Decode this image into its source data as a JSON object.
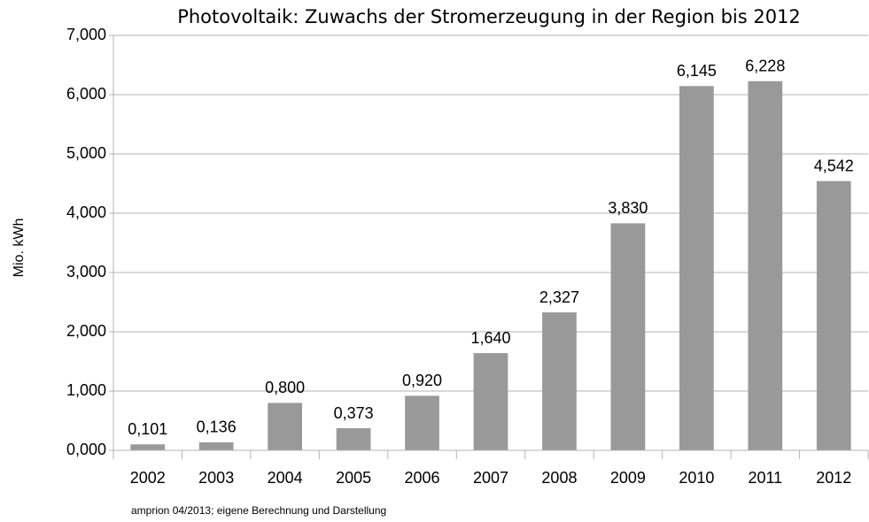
{
  "chart_data": {
    "type": "bar",
    "title": "Photovoltaik: Zuwachs der Stromerzeugung in der Region bis 2012",
    "y_label": "Mio. kWh",
    "source": "amprion 04/2013; eigene Berechnung und Darstellung",
    "categories": [
      "2002",
      "2003",
      "2004",
      "2005",
      "2006",
      "2007",
      "2008",
      "2009",
      "2010",
      "2011",
      "2012"
    ],
    "values": [
      0.101,
      0.136,
      0.8,
      0.373,
      0.92,
      1.64,
      2.327,
      3.83,
      6.145,
      6.228,
      4.542
    ],
    "value_labels": [
      "0,101",
      "0,136",
      "0,800",
      "0,373",
      "0,920",
      "1,640",
      "2,327",
      "3,830",
      "6,145",
      "6,228",
      "4,542"
    ],
    "color": "#999999",
    "ylim": [
      0,
      7
    ],
    "yticks": [
      {
        "value": 0,
        "label": "0,000"
      },
      {
        "value": 1,
        "label": "1,000"
      },
      {
        "value": 2,
        "label": "2,000"
      },
      {
        "value": 3,
        "label": "3,000"
      },
      {
        "value": 4,
        "label": "4,000"
      },
      {
        "value": 5,
        "label": "5,000"
      },
      {
        "value": 6,
        "label": "6,000"
      },
      {
        "value": 7,
        "label": "7,000"
      }
    ],
    "grid": true
  }
}
